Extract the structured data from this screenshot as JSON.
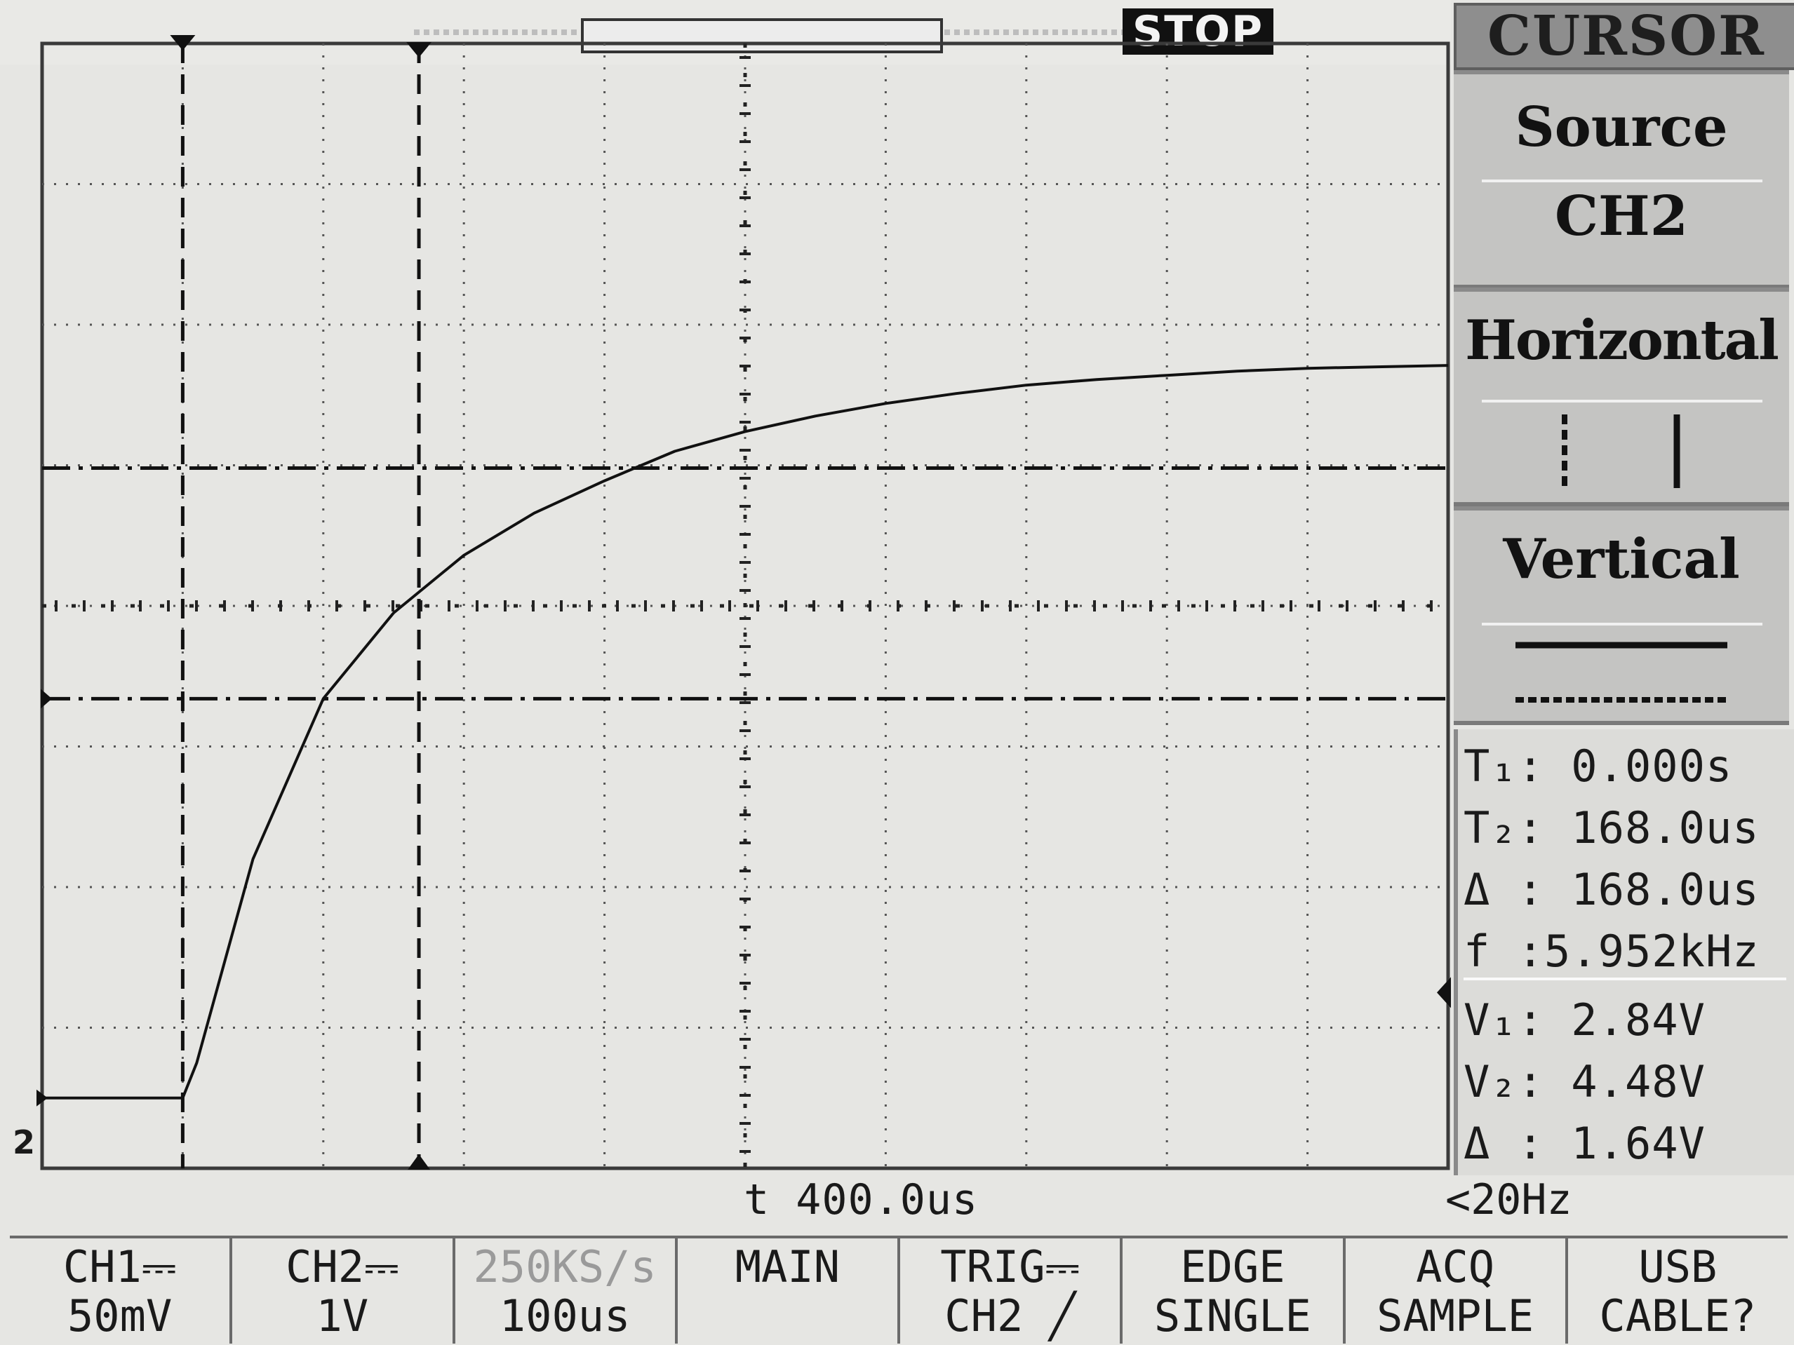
{
  "top": {
    "status": "STOP"
  },
  "screen": {
    "ch2_marker": "2",
    "timebase": "t 400.0us",
    "trigger_freq": "<20Hz"
  },
  "menu": {
    "title": "CURSOR",
    "source_label": "Source",
    "source_value": "CH2",
    "horizontal_label": "Horizontal",
    "vertical_label": "Vertical"
  },
  "readouts": {
    "t1": "T₁: 0.000s",
    "t2": "T₂: 168.0us",
    "dt": "Δ : 168.0us",
    "freq": "f :5.952kHz",
    "v1": "V₁: 2.84V",
    "v2": "V₂: 4.48V",
    "dv": "Δ : 1.64V"
  },
  "bottom": [
    {
      "line1": "CH1⎓",
      "line2": "50mV"
    },
    {
      "line1": "CH2⎓",
      "line2": "1V"
    },
    {
      "line1": "250KS/s",
      "line2": "100us"
    },
    {
      "line1": "MAIN",
      "line2": ""
    },
    {
      "line1": "TRIG⎓",
      "line2": "CH2 ╱"
    },
    {
      "line1": "EDGE",
      "line2": "SINGLE"
    },
    {
      "line1": "ACQ",
      "line2": "SAMPLE"
    },
    {
      "line1": "USB",
      "line2": "CABLE?"
    }
  ],
  "chart_data": {
    "type": "line",
    "title": "",
    "xlabel": "",
    "ylabel": "",
    "grid": true,
    "x_units": "us",
    "y_units": "V",
    "xlim": [
      0,
      1000
    ],
    "ylim": [
      -0.5,
      7.5
    ],
    "series": [
      {
        "x": [
          0,
          100,
          110,
          150,
          200,
          250,
          300,
          350,
          400,
          450,
          500,
          550,
          600,
          650,
          700,
          750,
          800,
          850,
          900,
          950,
          1000
        ],
        "y": [
          0.0,
          0.0,
          0.25,
          1.7,
          2.84,
          3.45,
          3.86,
          4.16,
          4.39,
          4.6,
          4.74,
          4.85,
          4.94,
          5.01,
          5.07,
          5.11,
          5.14,
          5.17,
          5.19,
          5.2,
          5.21
        ]
      }
    ],
    "cursors": {
      "t1": 100,
      "t2": 268,
      "v1": 2.84,
      "v2": 4.48
    }
  }
}
